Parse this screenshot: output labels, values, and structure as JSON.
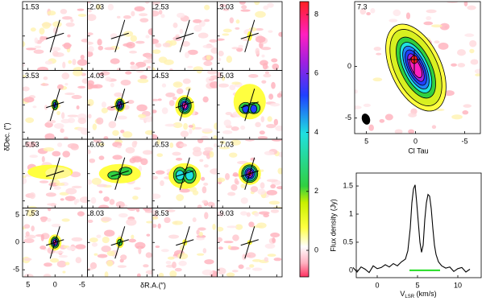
{
  "chart_data": [
    {
      "type": "channel-maps",
      "channels": [
        "1.53",
        "2.03",
        "2.53",
        "3.03",
        "3.53",
        "4.03",
        "4.53",
        "5.03",
        "5.53",
        "6.03",
        "6.53",
        "7.03",
        "7.53",
        "8.03",
        "8.53",
        "9.03"
      ],
      "xlabel": "δR.A.(″)",
      "ylabel": "δDec. (″)",
      "xlim": [
        6,
        -6
      ],
      "xticks": [
        5,
        0,
        -5
      ],
      "ylim": [
        -6.3,
        6.3
      ],
      "yticks": [
        5,
        0,
        -5
      ]
    },
    {
      "type": "colorbar",
      "ylim": [
        -0.9,
        8.44
      ],
      "yticks": [
        0,
        2,
        4,
        6,
        8
      ]
    },
    {
      "type": "image",
      "label": "7.3",
      "xlabel": "Cl Tau",
      "xlim": [
        6.2,
        -6.6
      ],
      "xticks": [
        5,
        0,
        -5
      ],
      "ylim": [
        -6.5,
        6.25
      ],
      "yticks": [
        0,
        -5
      ]
    },
    {
      "type": "line",
      "ylabel": "Flux density (Jy)",
      "xlabel": [
        "V",
        "LSR",
        " (km/s)"
      ],
      "xlim": [
        -2.6,
        12.9
      ],
      "xticks": [
        0,
        5,
        10
      ],
      "ylim": [
        -0.13,
        1.73
      ],
      "yticks": [
        0,
        0.5,
        1,
        1.5
      ],
      "color": "#000000",
      "x": [
        -3,
        -2.5,
        -2,
        -1.5,
        -1,
        -0.5,
        0,
        0.5,
        1,
        1.5,
        2,
        2.5,
        3,
        3.5,
        3.8,
        4.1,
        4.3,
        4.5,
        4.7,
        4.9,
        5.1,
        5.3,
        5.5,
        5.7,
        5.9,
        6.1,
        6.3,
        6.5,
        6.7,
        6.9,
        7.1,
        7.3,
        7.6,
        8,
        8.5,
        9,
        9.5,
        10,
        10.5,
        11,
        11.5
      ],
      "values": [
        0.05,
        -0.03,
        0.06,
        0.02,
        -0.04,
        0.08,
        0.03,
        0.05,
        0.1,
        0.06,
        0.12,
        0.08,
        0.15,
        0.2,
        0.35,
        0.75,
        1.2,
        1.45,
        1.52,
        1.2,
        0.85,
        0.5,
        0.32,
        0.45,
        0.9,
        1.2,
        1.35,
        1.32,
        1.1,
        0.75,
        0.45,
        0.28,
        0.15,
        0.08,
        0.04,
        0.06,
        -0.02,
        0.03,
        0.05,
        -0.03,
        0.02
      ],
      "range": [
        4,
        7.8
      ],
      "range_color": "#22dd22"
    }
  ]
}
